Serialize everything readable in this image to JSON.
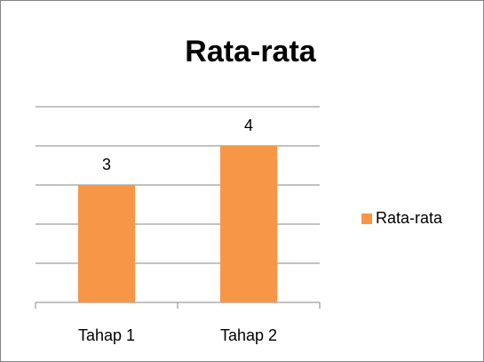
{
  "chart_data": {
    "type": "bar",
    "title": "Rata-rata",
    "categories": [
      "Tahap 1",
      "Tahap 2"
    ],
    "series": [
      {
        "name": "Rata-rata",
        "color": "#f79646",
        "values": [
          3,
          4
        ]
      }
    ],
    "ylim": [
      0,
      5
    ],
    "yticks": [
      0,
      1,
      2,
      3,
      4,
      5
    ],
    "grid": true,
    "legend": "right",
    "data_labels": true
  }
}
